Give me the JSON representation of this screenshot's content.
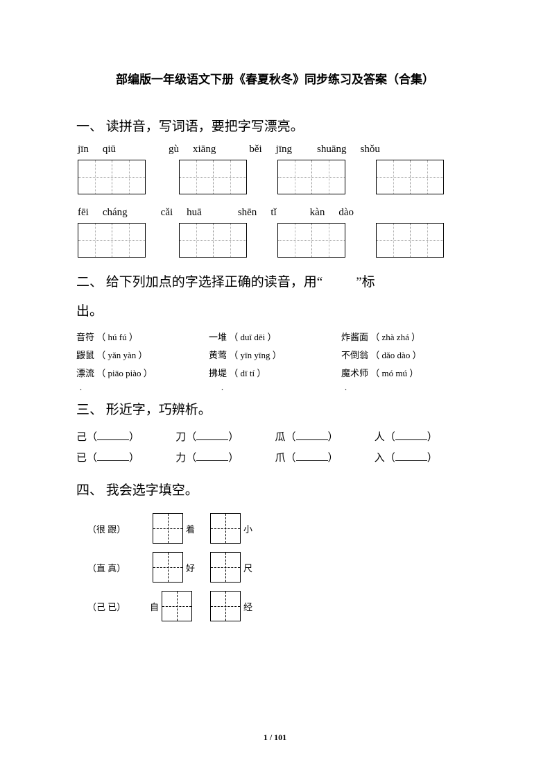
{
  "title": "部编版一年级语文下册《春夏秋冬》同步练习及答案（合集）",
  "section1": {
    "heading": "一、 读拼音，写词语，要把字写漂亮。",
    "row1": [
      {
        "p1": "jīn",
        "p2": "qiū",
        "gap_after": 76
      },
      {
        "p1": "gù",
        "p2": "xiāng",
        "gap_after": 48
      },
      {
        "p1": "běi",
        "p2": "jīng",
        "gap_after": 36
      },
      {
        "p1": "shuāng",
        "p2": "shǒu",
        "gap_after": 0
      }
    ],
    "row2": [
      {
        "p1": "fēi",
        "p2": "cháng",
        "gap_after": 48
      },
      {
        "p1": "cǎi",
        "p2": "huā",
        "gap_after": 52
      },
      {
        "p1": "shēn",
        "p2": "tǐ",
        "gap_after": 48
      },
      {
        "p1": "kàn",
        "p2": "dào",
        "gap_after": 0
      }
    ],
    "box_gaps_r1": [
      48,
      44,
      44,
      0
    ],
    "box_gaps_r2": [
      48,
      44,
      44,
      0
    ]
  },
  "section2": {
    "heading_a": "二、 给下列加点的字选择正确的读音，用“",
    "heading_b": "”标",
    "heading_c": "出。",
    "rows": [
      [
        {
          "pre": "音",
          "dot": "符",
          "opts": "（ hú  fú  ）"
        },
        {
          "pre": "一",
          "dot": "堆",
          "opts": "（ duī  dēi ）"
        },
        {
          "pre": "",
          "dot": "炸",
          "post": "酱面",
          "opts": "（ zhà  zhá  ）"
        }
      ],
      [
        {
          "pre": "",
          "dot": "鼹",
          "post": "鼠",
          "opts": "（ yǎn  yàn  ）"
        },
        {
          "pre": "黄",
          "dot": "莺",
          "opts": "（ yīn yīng ）"
        },
        {
          "pre": "不",
          "dot": "倒",
          "post": "翁",
          "opts": "（ dǎo  dào  ）"
        }
      ],
      [
        {
          "pre": "",
          "dot": "漂",
          "post": "流",
          "opts": "（ piāo piào ）"
        },
        {
          "pre": "拂",
          "dot": "堤",
          "opts": "（ dī  tí  ）"
        },
        {
          "pre": "",
          "dot": "魔",
          "post": "术师",
          "opts": "（ mó  mú   ）"
        }
      ]
    ]
  },
  "section3": {
    "heading": "三、 形近字，巧辨析。",
    "rows": [
      [
        "己",
        "刀",
        "瓜",
        "人"
      ],
      [
        "已",
        "力",
        "爪",
        "入"
      ]
    ]
  },
  "section4": {
    "heading": "四、 我会选字填空。",
    "rows": [
      {
        "opts": "（很  跟）",
        "a": "着",
        "b": "小"
      },
      {
        "opts": "（直  真）",
        "a": "好",
        "b": "尺"
      },
      {
        "opts": "（己  已）",
        "pre": "自",
        "a": "",
        "b": "经"
      }
    ]
  },
  "page": "1 / 101"
}
